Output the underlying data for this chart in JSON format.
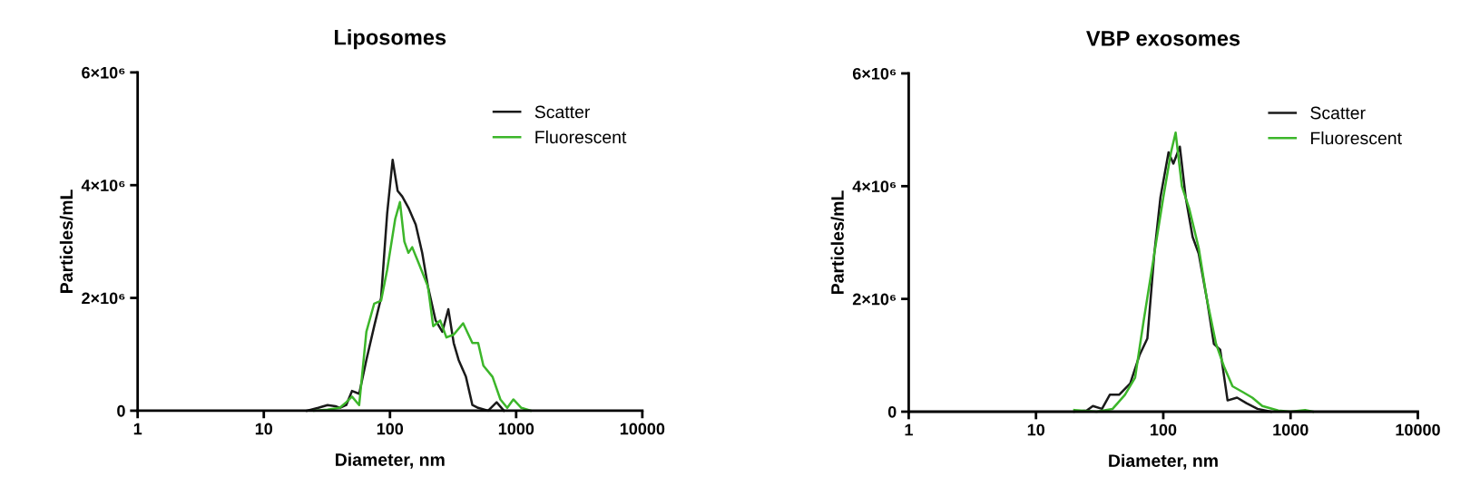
{
  "chart_data": [
    {
      "type": "line",
      "title": "Liposomes",
      "xlabel": "Diameter, nm",
      "ylabel": "Particles/mL",
      "log": "x",
      "legend": "top right",
      "grid": false,
      "xlim": [
        1,
        10000
      ],
      "xticks": [
        1,
        10,
        100,
        1000,
        10000
      ],
      "ylim": [
        0,
        6000000
      ],
      "yticks": [
        0,
        {
          "value": 2000000,
          "label": "2×10⁶"
        },
        {
          "value": 4000000,
          "label": "4×10⁶"
        },
        {
          "value": 6000000,
          "label": "6×10⁶"
        }
      ],
      "series": [
        {
          "name": "Scatter",
          "color": "#1a1a1a",
          "x": [
            22,
            27,
            32,
            37,
            40,
            45,
            50,
            57,
            65,
            75,
            85,
            95,
            105,
            115,
            125,
            140,
            160,
            180,
            200,
            230,
            260,
            290,
            320,
            350,
            400,
            450,
            500,
            600,
            700,
            800
          ],
          "values": [
            0,
            50000,
            100000,
            80000,
            50000,
            100000,
            350000,
            300000,
            900000,
            1500000,
            2000000,
            3500000,
            4450000,
            3900000,
            3800000,
            3600000,
            3300000,
            2800000,
            2200000,
            1600000,
            1400000,
            1800000,
            1200000,
            900000,
            600000,
            100000,
            50000,
            0,
            150000,
            0
          ]
        },
        {
          "name": "Fluorescent",
          "color": "#3cb62a",
          "x": [
            25,
            32,
            40,
            45,
            50,
            57,
            65,
            75,
            85,
            95,
            110,
            120,
            130,
            140,
            150,
            170,
            200,
            220,
            250,
            280,
            320,
            380,
            450,
            500,
            550,
            650,
            750,
            850,
            950,
            1100,
            1300
          ],
          "values": [
            0,
            20000,
            50000,
            150000,
            250000,
            100000,
            1400000,
            1900000,
            1950000,
            2500000,
            3400000,
            3700000,
            3000000,
            2800000,
            2900000,
            2600000,
            2200000,
            1500000,
            1600000,
            1300000,
            1350000,
            1550000,
            1200000,
            1200000,
            800000,
            600000,
            200000,
            50000,
            200000,
            50000,
            0
          ]
        }
      ]
    },
    {
      "type": "line",
      "title": "VBP exosomes",
      "xlabel": "Diameter, nm",
      "ylabel": "Particles/mL",
      "log": "x",
      "legend": "top right",
      "grid": false,
      "xlim": [
        1,
        10000
      ],
      "xticks": [
        1,
        10,
        100,
        1000,
        10000
      ],
      "ylim": [
        0,
        6000000
      ],
      "yticks": [
        0,
        {
          "value": 2000000,
          "label": "2×10⁶"
        },
        {
          "value": 4000000,
          "label": "4×10⁶"
        },
        {
          "value": 6000000,
          "label": "6×10⁶"
        }
      ],
      "series": [
        {
          "name": "Scatter",
          "color": "#1a1a1a",
          "x": [
            20,
            25,
            28,
            33,
            38,
            45,
            55,
            65,
            75,
            85,
            95,
            110,
            120,
            135,
            150,
            170,
            190,
            220,
            250,
            280,
            320,
            380,
            450,
            550,
            700
          ],
          "values": [
            0,
            20000,
            100000,
            50000,
            300000,
            300000,
            500000,
            1000000,
            1300000,
            2800000,
            3800000,
            4600000,
            4400000,
            4700000,
            3800000,
            3100000,
            2800000,
            2000000,
            1200000,
            1100000,
            200000,
            250000,
            150000,
            50000,
            0
          ]
        },
        {
          "name": "Fluorescent",
          "color": "#3cb62a",
          "x": [
            20,
            30,
            40,
            50,
            60,
            70,
            85,
            100,
            115,
            125,
            140,
            160,
            190,
            220,
            260,
            300,
            350,
            420,
            500,
            600,
            800,
            1000,
            1300,
            1500
          ],
          "values": [
            30000,
            0,
            50000,
            300000,
            600000,
            1600000,
            2800000,
            3800000,
            4600000,
            4950000,
            4000000,
            3600000,
            2900000,
            2000000,
            1200000,
            800000,
            450000,
            350000,
            250000,
            100000,
            20000,
            0,
            30000,
            0
          ]
        }
      ]
    }
  ]
}
